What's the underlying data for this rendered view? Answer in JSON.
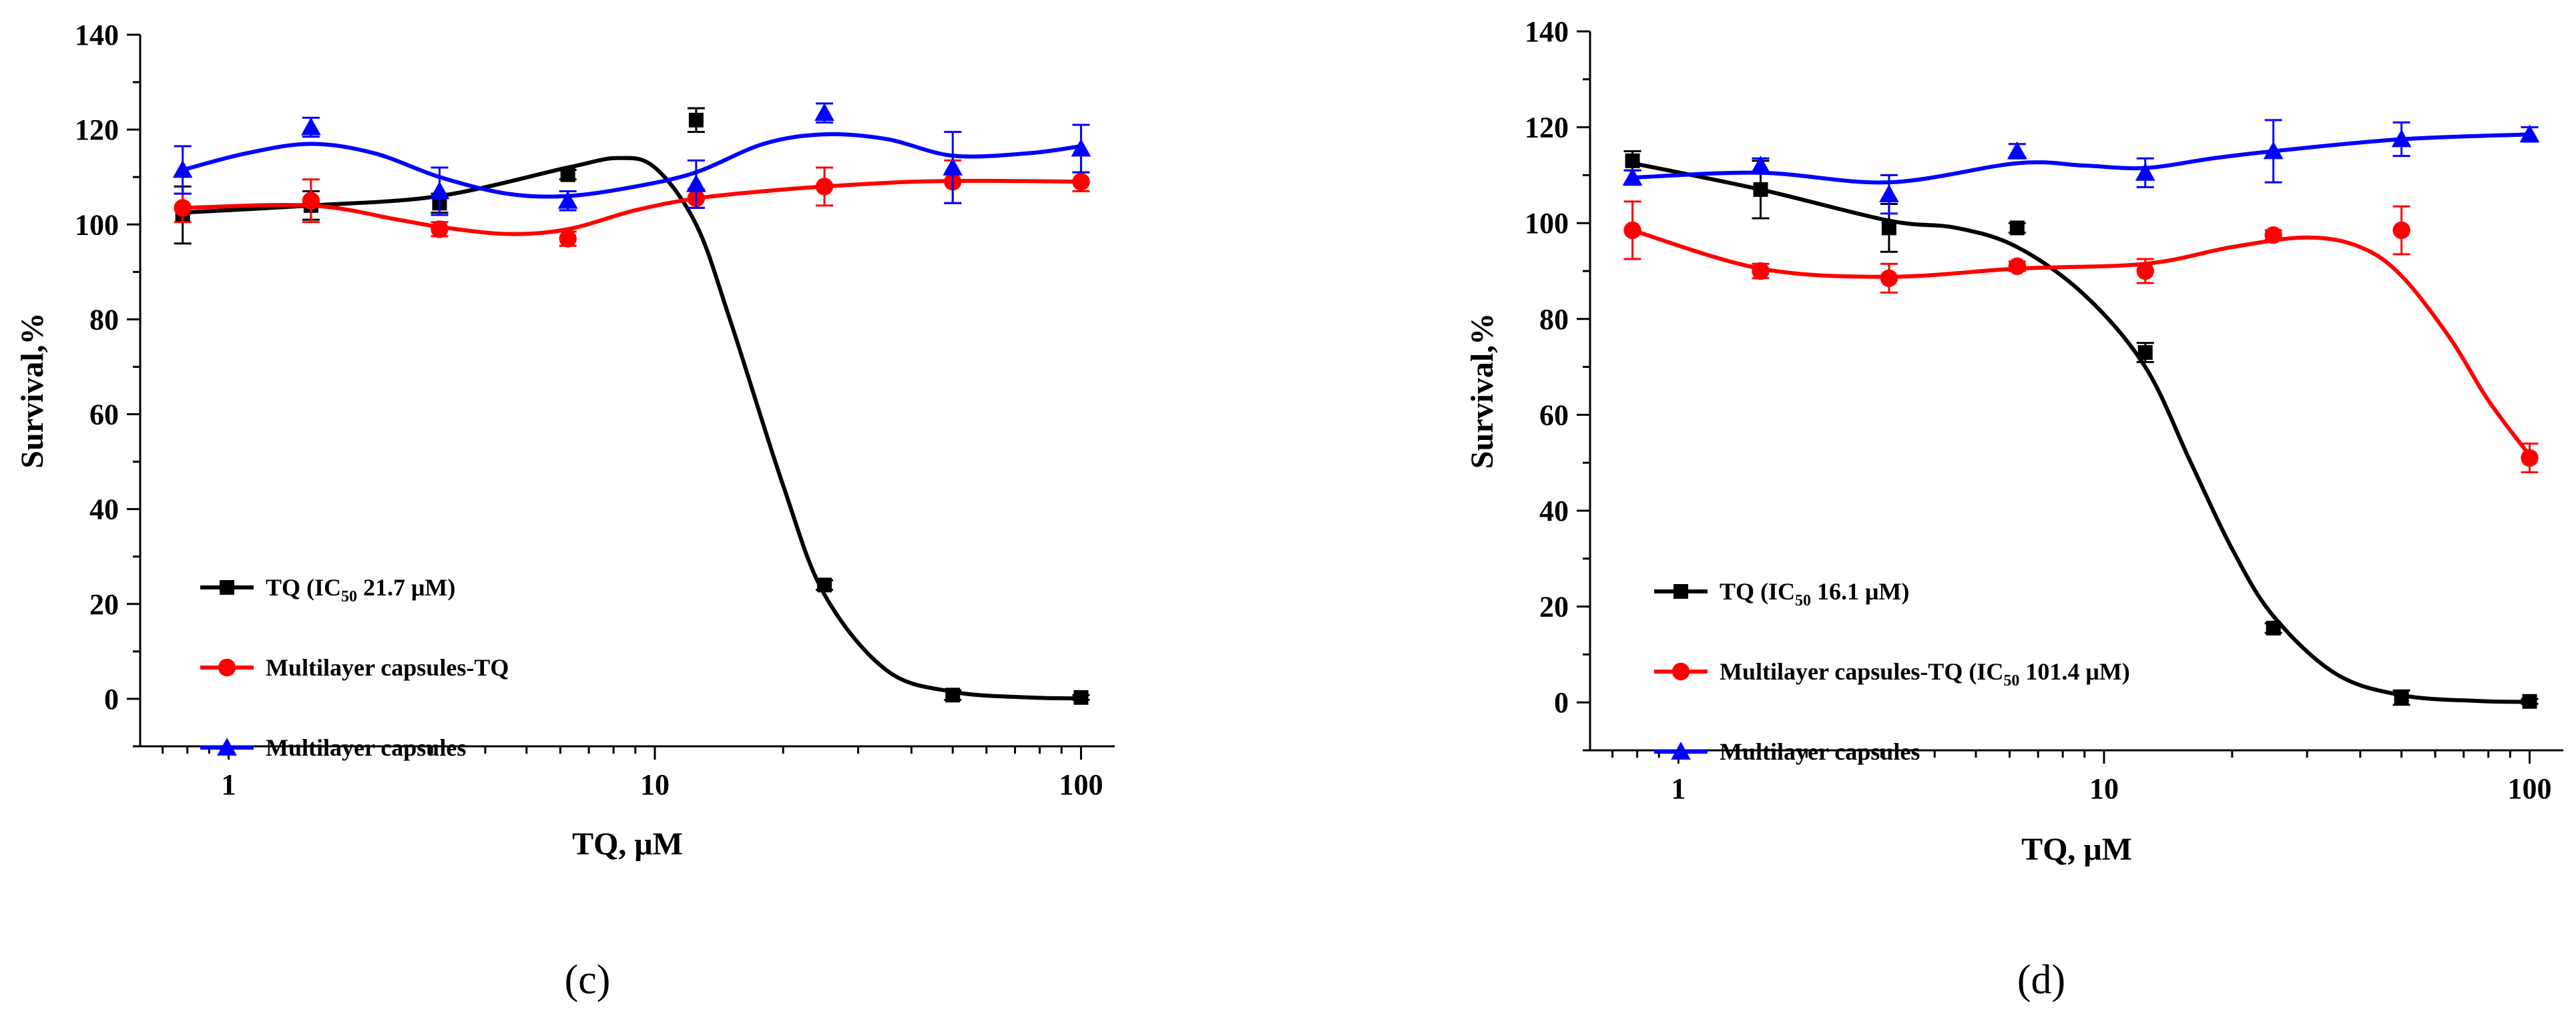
{
  "chart_data": [
    {
      "type": "scatter",
      "panel_label": "(c)",
      "xlabel": "TQ, μM",
      "ylabel": "Survival,%",
      "xscale": "log",
      "xlim": [
        0.62,
        120
      ],
      "ylim": [
        -10,
        140
      ],
      "xticks": [
        1,
        10,
        100
      ],
      "xtick_labels": [
        "1",
        "10",
        "100"
      ],
      "yticks": [
        0,
        20,
        40,
        60,
        80,
        100,
        120,
        140
      ],
      "ytick_labels": [
        "0",
        "20",
        "40",
        "60",
        "80",
        "100",
        "120",
        "140"
      ],
      "legend_position": "bottom-left",
      "series": [
        {
          "name": "TQ (IC50 21.7 μM)",
          "legend": {
            "prefix": "TQ (IC",
            "sub": "50",
            "suffix": " 21.7 μM)"
          },
          "color": "#000000",
          "marker": "square",
          "x": [
            0.78,
            1.56,
            3.125,
            6.25,
            12.5,
            25,
            50,
            100
          ],
          "y": [
            102,
            104,
            104.5,
            110.5,
            122,
            24,
            0.8,
            0.3
          ],
          "err": [
            6,
            3,
            2,
            1,
            2.5,
            1,
            1,
            0.5
          ],
          "curve": [
            [
              0.78,
              102.5
            ],
            [
              1.56,
              104
            ],
            [
              3.125,
              106
            ],
            [
              6.25,
              112
            ],
            [
              8.2,
              114
            ],
            [
              10,
              112
            ],
            [
              12.5,
              100
            ],
            [
              15,
              80
            ],
            [
              20,
              45
            ],
            [
              25,
              22
            ],
            [
              35,
              6
            ],
            [
              50,
              1.5
            ],
            [
              75,
              0.3
            ],
            [
              100,
              0.1
            ]
          ]
        },
        {
          "name": "Multilayer capsules-TQ",
          "legend": {
            "prefix": "Multilayer capsules-TQ",
            "sub": "",
            "suffix": ""
          },
          "color": "#ff0000",
          "marker": "circle",
          "x": [
            0.78,
            1.56,
            3.125,
            6.25,
            12.5,
            25,
            50,
            100
          ],
          "y": [
            103.5,
            105,
            99,
            97,
            105.5,
            108,
            109,
            109
          ],
          "err": [
            3,
            4.5,
            1.5,
            1.5,
            2,
            4,
            4.5,
            2
          ],
          "curve": [
            [
              0.78,
              103.5
            ],
            [
              1.56,
              104
            ],
            [
              2.5,
              101
            ],
            [
              3.125,
              99.5
            ],
            [
              4.5,
              98
            ],
            [
              6.25,
              99
            ],
            [
              9,
              103
            ],
            [
              12.5,
              105.5
            ],
            [
              18,
              107
            ],
            [
              25,
              108
            ],
            [
              40,
              109
            ],
            [
              60,
              109.2
            ],
            [
              100,
              109
            ]
          ]
        },
        {
          "name": "Multilayer capsules",
          "legend": {
            "prefix": "Multilayer capsules",
            "sub": "",
            "suffix": ""
          },
          "color": "#0000ff",
          "marker": "triangle",
          "x": [
            0.78,
            1.56,
            3.125,
            6.25,
            12.5,
            25,
            50,
            100
          ],
          "y": [
            111.5,
            120.5,
            107,
            105,
            108.5,
            123.5,
            112,
            116
          ],
          "err": [
            5,
            2,
            5,
            2,
            5,
            2,
            7.5,
            5
          ],
          "curve": [
            [
              0.78,
              111.5
            ],
            [
              1.1,
              115
            ],
            [
              1.56,
              117
            ],
            [
              2.2,
              115
            ],
            [
              3.125,
              110
            ],
            [
              4.5,
              106.5
            ],
            [
              6.25,
              106
            ],
            [
              9,
              108
            ],
            [
              12.5,
              111
            ],
            [
              18,
              117
            ],
            [
              25,
              119
            ],
            [
              35,
              118
            ],
            [
              50,
              114.5
            ],
            [
              75,
              115
            ],
            [
              100,
              116.5
            ]
          ]
        }
      ]
    },
    {
      "type": "scatter",
      "panel_label": "(d)",
      "xlabel": "TQ, μM",
      "ylabel": "Survival,%",
      "xscale": "log",
      "xlim": [
        0.62,
        120
      ],
      "ylim": [
        -10,
        140
      ],
      "xticks": [
        1,
        10,
        100
      ],
      "xtick_labels": [
        "1",
        "10",
        "100"
      ],
      "yticks": [
        0,
        20,
        40,
        60,
        80,
        100,
        120,
        140
      ],
      "ytick_labels": [
        "0",
        "20",
        "40",
        "60",
        "80",
        "100",
        "120",
        "140"
      ],
      "legend_position": "bottom-left",
      "series": [
        {
          "name": "TQ (IC50 16.1 μM)",
          "legend": {
            "prefix": "TQ (IC",
            "sub": "50",
            "suffix": " 16.1 μM)"
          },
          "color": "#000000",
          "marker": "square",
          "x": [
            0.78,
            1.56,
            3.125,
            6.25,
            12.5,
            25,
            50,
            100
          ],
          "y": [
            113,
            107,
            99,
            99,
            73,
            15.5,
            1,
            0.2
          ],
          "err": [
            2,
            6,
            5,
            1,
            2,
            1,
            1.5,
            0.5
          ],
          "curve": [
            [
              0.78,
              112.5
            ],
            [
              1.56,
              107
            ],
            [
              3.125,
              100.5
            ],
            [
              4.5,
              99
            ],
            [
              6.25,
              95
            ],
            [
              9,
              85
            ],
            [
              12.5,
              70
            ],
            [
              16,
              50
            ],
            [
              20,
              32
            ],
            [
              25,
              18
            ],
            [
              35,
              6
            ],
            [
              50,
              1.5
            ],
            [
              75,
              0.3
            ],
            [
              100,
              0.1
            ]
          ]
        },
        {
          "name": "Multilayer capsules-TQ (IC50 101.4 μM)",
          "legend": {
            "prefix": "Multilayer capsules-TQ (IC",
            "sub": "50",
            "suffix": " 101.4 μM)"
          },
          "color": "#ff0000",
          "marker": "circle",
          "x": [
            0.78,
            1.56,
            3.125,
            6.25,
            12.5,
            25,
            50,
            100
          ],
          "y": [
            98.5,
            90,
            88.5,
            91,
            90,
            97.5,
            98.5,
            51
          ],
          "err": [
            6,
            1.5,
            3,
            1,
            2.5,
            1,
            5,
            3
          ],
          "curve": [
            [
              0.78,
              98.5
            ],
            [
              1.56,
              90.5
            ],
            [
              3.125,
              88.8
            ],
            [
              6.25,
              90.5
            ],
            [
              12.5,
              91.5
            ],
            [
              20,
              95
            ],
            [
              30,
              97
            ],
            [
              40,
              95
            ],
            [
              50,
              89
            ],
            [
              65,
              76
            ],
            [
              80,
              63
            ],
            [
              100,
              51.5
            ]
          ]
        },
        {
          "name": "Multilayer capsules",
          "legend": {
            "prefix": "Multilayer capsules",
            "sub": "",
            "suffix": ""
          },
          "color": "#0000ff",
          "marker": "triangle",
          "x": [
            0.78,
            1.56,
            3.125,
            6.25,
            12.5,
            25,
            50,
            100
          ],
          "y": [
            109.5,
            112,
            106,
            115,
            110.5,
            115,
            117.5,
            118.5
          ],
          "err": [
            1.5,
            1.5,
            4,
            1.5,
            3,
            6.5,
            3.5,
            1.5
          ],
          "curve": [
            [
              0.78,
              109.5
            ],
            [
              1.56,
              110.5
            ],
            [
              3.125,
              108.5
            ],
            [
              6.25,
              112.5
            ],
            [
              9,
              112
            ],
            [
              12.5,
              111.5
            ],
            [
              18,
              113.5
            ],
            [
              25,
              115
            ],
            [
              50,
              117.5
            ],
            [
              100,
              118.5
            ]
          ]
        }
      ]
    }
  ]
}
